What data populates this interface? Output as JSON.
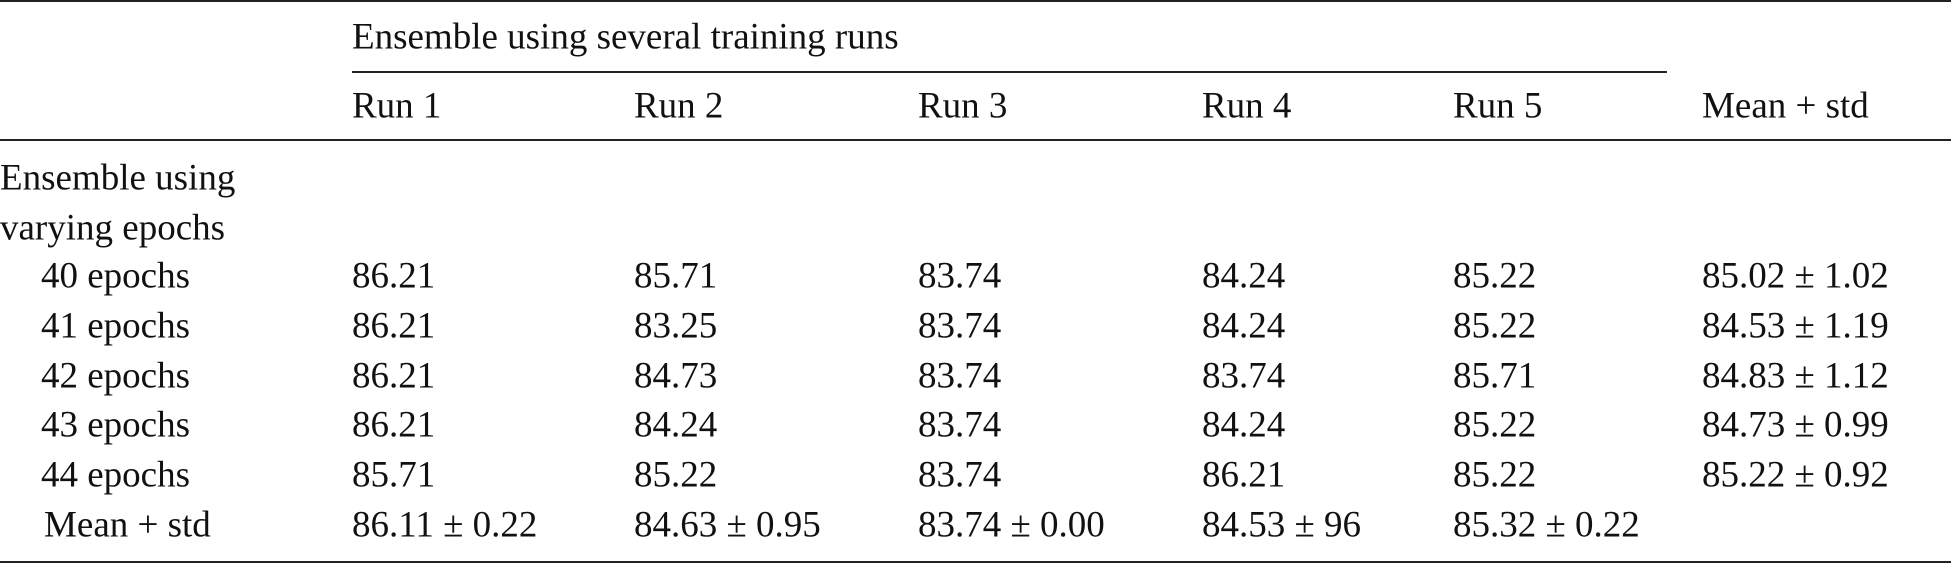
{
  "table": {
    "spanner": "Ensemble using several training runs",
    "columns": [
      "Run 1",
      "Run 2",
      "Run 3",
      "Run 4",
      "Run 5",
      "Mean + std"
    ],
    "row_group": [
      "Ensemble using",
      "varying epochs"
    ],
    "rows": [
      [
        "40 epochs",
        "86.21",
        "85.71",
        "83.74",
        "84.24",
        "85.22",
        "85.02 ± 1.02"
      ],
      [
        "41 epochs",
        "86.21",
        "83.25",
        "83.74",
        "84.24",
        "85.22",
        "84.53 ± 1.19"
      ],
      [
        "42 epochs",
        "86.21",
        "84.73",
        "83.74",
        "83.74",
        "85.71",
        "84.83 ± 1.12"
      ],
      [
        "43 epochs",
        "86.21",
        "84.24",
        "83.74",
        "84.24",
        "85.22",
        "84.73 ± 0.99"
      ],
      [
        "44 epochs",
        "85.71",
        "85.22",
        "83.74",
        "86.21",
        "85.22",
        "85.22 ± 0.92"
      ],
      [
        "Mean + std",
        "86.11 ± 0.22",
        "84.63 ± 0.95",
        "83.74 ± 0.00",
        "84.53 ± 96",
        "85.32 ± 0.22"
      ]
    ]
  }
}
